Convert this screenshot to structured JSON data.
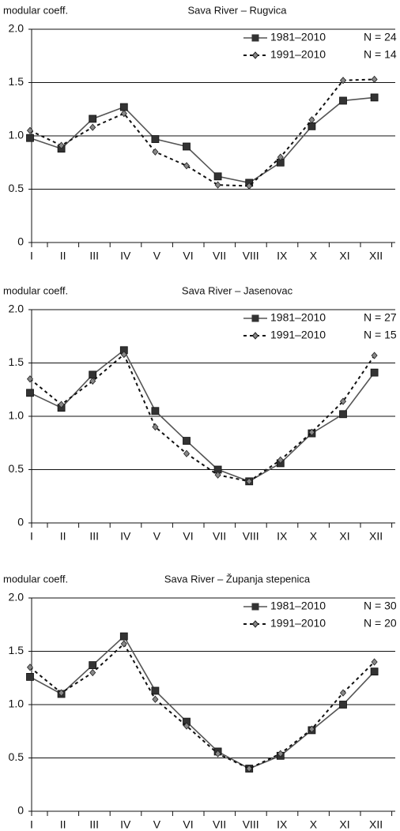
{
  "chart_data": [
    {
      "type": "line",
      "title": "Sava River – Rugvica",
      "y_label": "modular coeff.",
      "categories": [
        "I",
        "II",
        "III",
        "IV",
        "V",
        "VI",
        "VII",
        "VIII",
        "IX",
        "X",
        "XI",
        "XII"
      ],
      "series": [
        {
          "name": "1981–2010",
          "note": "N = 24",
          "color": "#555555",
          "dash": false,
          "values": [
            0.98,
            0.88,
            1.16,
            1.27,
            0.97,
            0.9,
            0.62,
            0.56,
            0.75,
            1.09,
            1.33,
            1.36
          ]
        },
        {
          "name": "1991–2010",
          "note": "N = 14",
          "color": "#111111",
          "dash": true,
          "values": [
            1.05,
            0.91,
            1.08,
            1.21,
            0.85,
            0.72,
            0.54,
            0.53,
            0.8,
            1.15,
            1.52,
            1.53
          ]
        }
      ],
      "ylim": [
        0,
        2
      ],
      "yticks": [
        0,
        0.5,
        {
          "value": 1,
          "label": "1.0"
        },
        1.5,
        {
          "value": 2,
          "label": "2.0"
        }
      ],
      "grid": true,
      "legend": "upper right"
    },
    {
      "type": "line",
      "title": "Sava River – Jasenovac",
      "y_label": "modular coeff.",
      "categories": [
        "I",
        "II",
        "III",
        "IV",
        "V",
        "VI",
        "VII",
        "VIII",
        "IX",
        "X",
        "XI",
        "XII"
      ],
      "series": [
        {
          "name": "1981–2010",
          "note": "N = 27",
          "color": "#555555",
          "dash": false,
          "values": [
            1.22,
            1.08,
            1.39,
            1.62,
            1.05,
            0.77,
            0.5,
            0.39,
            0.56,
            0.84,
            1.02,
            1.41
          ]
        },
        {
          "name": "1991–2010",
          "note": "N = 15",
          "color": "#111111",
          "dash": true,
          "values": [
            1.35,
            1.11,
            1.33,
            1.58,
            0.9,
            0.65,
            0.45,
            0.39,
            0.59,
            0.85,
            1.14,
            1.57
          ]
        }
      ],
      "ylim": [
        0,
        2
      ],
      "yticks": [
        0,
        0.5,
        {
          "value": 1,
          "label": "1.0"
        },
        1.5,
        {
          "value": 2,
          "label": "2.0"
        }
      ],
      "grid": true,
      "legend": "upper right"
    },
    {
      "type": "line",
      "title": "Sava River – Županja stepenica",
      "y_label": "modular coeff.",
      "categories": [
        "I",
        "II",
        "III",
        "IV",
        "V",
        "VI",
        "VII",
        "VIII",
        "IX",
        "X",
        "XI",
        "XII"
      ],
      "series": [
        {
          "name": "1981–2010",
          "note": "N = 30",
          "color": "#555555",
          "dash": false,
          "values": [
            1.26,
            1.1,
            1.37,
            1.64,
            1.13,
            0.84,
            0.56,
            0.4,
            0.52,
            0.76,
            1.0,
            1.31
          ]
        },
        {
          "name": "1991–2010",
          "note": "N = 20",
          "color": "#111111",
          "dash": true,
          "values": [
            1.35,
            1.11,
            1.3,
            1.57,
            1.05,
            0.8,
            0.54,
            0.4,
            0.54,
            0.77,
            1.11,
            1.4
          ]
        }
      ],
      "ylim": [
        0,
        2
      ],
      "yticks": [
        0,
        0.5,
        {
          "value": 1,
          "label": "1.0"
        },
        1.5,
        {
          "value": 2,
          "label": "2.0"
        }
      ],
      "grid": true,
      "legend": "upper right"
    }
  ]
}
